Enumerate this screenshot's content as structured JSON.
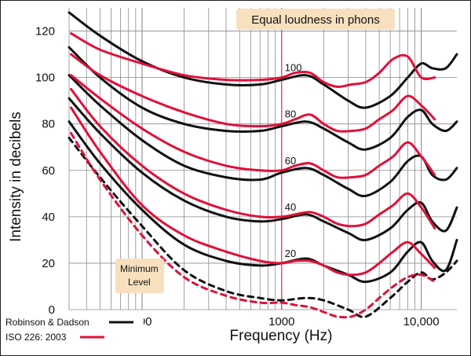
{
  "chart_data": {
    "type": "line",
    "title": "Equal loudness in phons",
    "xlabel": "Frequency (Hz)",
    "ylabel": "Intensity in decibels",
    "x_scale": "log",
    "xlim": [
      30,
      18000
    ],
    "ylim": [
      0,
      130
    ],
    "x_tick_labels": [
      {
        "value": 100,
        "label": "100"
      },
      {
        "value": 1000,
        "label": "1000",
        "color": "#e0103a"
      },
      {
        "value": 10000,
        "label": "10,000"
      }
    ],
    "y_ticks": [
      0,
      20,
      40,
      60,
      80,
      100,
      120
    ],
    "grid": true,
    "legend": [
      {
        "label": "Robinson & Dadson",
        "color": "#111111",
        "position": "bottom-left"
      },
      {
        "label": "ISO 226: 2003",
        "color": "#e0103a",
        "position": "bottom-left"
      }
    ],
    "phon_labels": [
      "100",
      "80",
      "60",
      "40",
      "20"
    ],
    "min_level_label": [
      "Minimum",
      "Level"
    ],
    "series": [
      {
        "group": "Robinson & Dadson",
        "phon": 100,
        "x": [
          30,
          50,
          100,
          200,
          400,
          700,
          1000,
          1500,
          2000,
          3000,
          4000,
          6000,
          8000,
          10000,
          12000,
          15000,
          18000
        ],
        "y": [
          128,
          118,
          107,
          100,
          97,
          97,
          99,
          101,
          97,
          90,
          87,
          92,
          100,
          106,
          104,
          104,
          110
        ]
      },
      {
        "group": "Robinson & Dadson",
        "phon": 80,
        "x": [
          30,
          50,
          100,
          200,
          400,
          700,
          1000,
          1500,
          2000,
          3000,
          4000,
          6000,
          8000,
          10000,
          12000,
          15000,
          18000
        ],
        "y": [
          113,
          100,
          87,
          80,
          77,
          77,
          79,
          81,
          78,
          72,
          69,
          74,
          83,
          86,
          80,
          77,
          81
        ]
      },
      {
        "group": "Robinson & Dadson",
        "phon": 60,
        "x": [
          30,
          50,
          100,
          200,
          400,
          700,
          1000,
          1500,
          2000,
          3000,
          4000,
          6000,
          8000,
          10000,
          12000,
          15000,
          18000
        ],
        "y": [
          101,
          88,
          73,
          62,
          57,
          56,
          59,
          61,
          58,
          52,
          49,
          55,
          64,
          66,
          58,
          56,
          61
        ]
      },
      {
        "group": "Robinson & Dadson",
        "phon": 40,
        "x": [
          30,
          50,
          100,
          200,
          400,
          700,
          1000,
          1500,
          2000,
          3000,
          4000,
          6000,
          8000,
          10000,
          12000,
          15000,
          18000
        ],
        "y": [
          91,
          76,
          59,
          47,
          40,
          38,
          39,
          41,
          38,
          33,
          30,
          35,
          43,
          46,
          38,
          34,
          44
        ]
      },
      {
        "group": "Robinson & Dadson",
        "phon": 20,
        "x": [
          30,
          50,
          100,
          200,
          400,
          700,
          1000,
          1500,
          2000,
          3000,
          4000,
          6000,
          8000,
          10000,
          12000,
          15000,
          18000
        ],
        "y": [
          81,
          63,
          43,
          28,
          21,
          19,
          20,
          22,
          19,
          15,
          12,
          16,
          25,
          29,
          21,
          17,
          30
        ]
      },
      {
        "group": "Robinson & Dadson",
        "phon": "min",
        "dashed": true,
        "x": [
          30,
          50,
          100,
          200,
          400,
          700,
          1000,
          1500,
          2000,
          3000,
          4000,
          6000,
          8000,
          10000,
          12000,
          15000,
          18000
        ],
        "y": [
          74,
          57,
          36,
          17,
          8,
          5,
          4,
          5,
          4,
          0,
          -3,
          5,
          12,
          16,
          13,
          16,
          21
        ]
      },
      {
        "group": "ISO 226: 2003",
        "phon": 100,
        "x": [
          31,
          50,
          100,
          200,
          400,
          700,
          1000,
          1250,
          1600,
          2000,
          2500,
          3150,
          4000,
          5000,
          6300,
          8000,
          10000,
          12500
        ],
        "y": [
          119,
          112,
          106,
          101,
          99,
          99,
          100,
          102,
          102,
          98,
          96,
          97,
          98,
          102,
          108,
          109,
          100,
          100
        ]
      },
      {
        "group": "ISO 226: 2003",
        "phon": 80,
        "x": [
          31,
          50,
          100,
          200,
          400,
          700,
          1000,
          1250,
          1600,
          2000,
          2500,
          3150,
          4000,
          5000,
          6300,
          8000,
          10000,
          12500
        ],
        "y": [
          110,
          101,
          92,
          85,
          80,
          79,
          80,
          82,
          84,
          80,
          77,
          77,
          78,
          82,
          86,
          92,
          88,
          82
        ]
      },
      {
        "group": "ISO 226: 2003",
        "phon": 60,
        "x": [
          31,
          50,
          100,
          200,
          400,
          700,
          1000,
          1250,
          1600,
          2000,
          2500,
          3150,
          4000,
          5000,
          6300,
          8000,
          10000,
          12500
        ],
        "y": [
          101,
          91,
          78,
          68,
          62,
          60,
          60,
          62,
          63,
          60,
          57,
          57,
          58,
          62,
          66,
          72,
          66,
          58
        ]
      },
      {
        "group": "ISO 226: 2003",
        "phon": 40,
        "x": [
          31,
          50,
          100,
          200,
          400,
          700,
          1000,
          1250,
          1600,
          2000,
          2500,
          3150,
          4000,
          5000,
          6300,
          8000,
          10000,
          12500
        ],
        "y": [
          95,
          79,
          62,
          50,
          43,
          40,
          40,
          41,
          42,
          40,
          37,
          36,
          37,
          41,
          45,
          50,
          44,
          35
        ]
      },
      {
        "group": "ISO 226: 2003",
        "phon": 20,
        "x": [
          31,
          50,
          100,
          200,
          400,
          700,
          1000,
          1250,
          1600,
          2000,
          2500,
          3150,
          4000,
          5000,
          6300,
          8000,
          10000,
          12500
        ],
        "y": [
          87,
          68,
          45,
          32,
          25,
          21,
          20,
          21,
          21,
          19,
          16,
          15,
          16,
          20,
          25,
          29,
          24,
          18
        ]
      },
      {
        "group": "ISO 226: 2003",
        "phon": "min",
        "dashed": true,
        "x": [
          31,
          50,
          100,
          200,
          400,
          700,
          1000,
          1250,
          1600,
          2000,
          2500,
          3150,
          4000,
          5000,
          6300,
          8000,
          10000,
          12500
        ],
        "y": [
          76,
          56,
          32,
          14,
          6,
          3,
          3,
          2,
          1,
          -1,
          -3,
          -3,
          0,
          5,
          10,
          14,
          15,
          12
        ]
      }
    ]
  }
}
